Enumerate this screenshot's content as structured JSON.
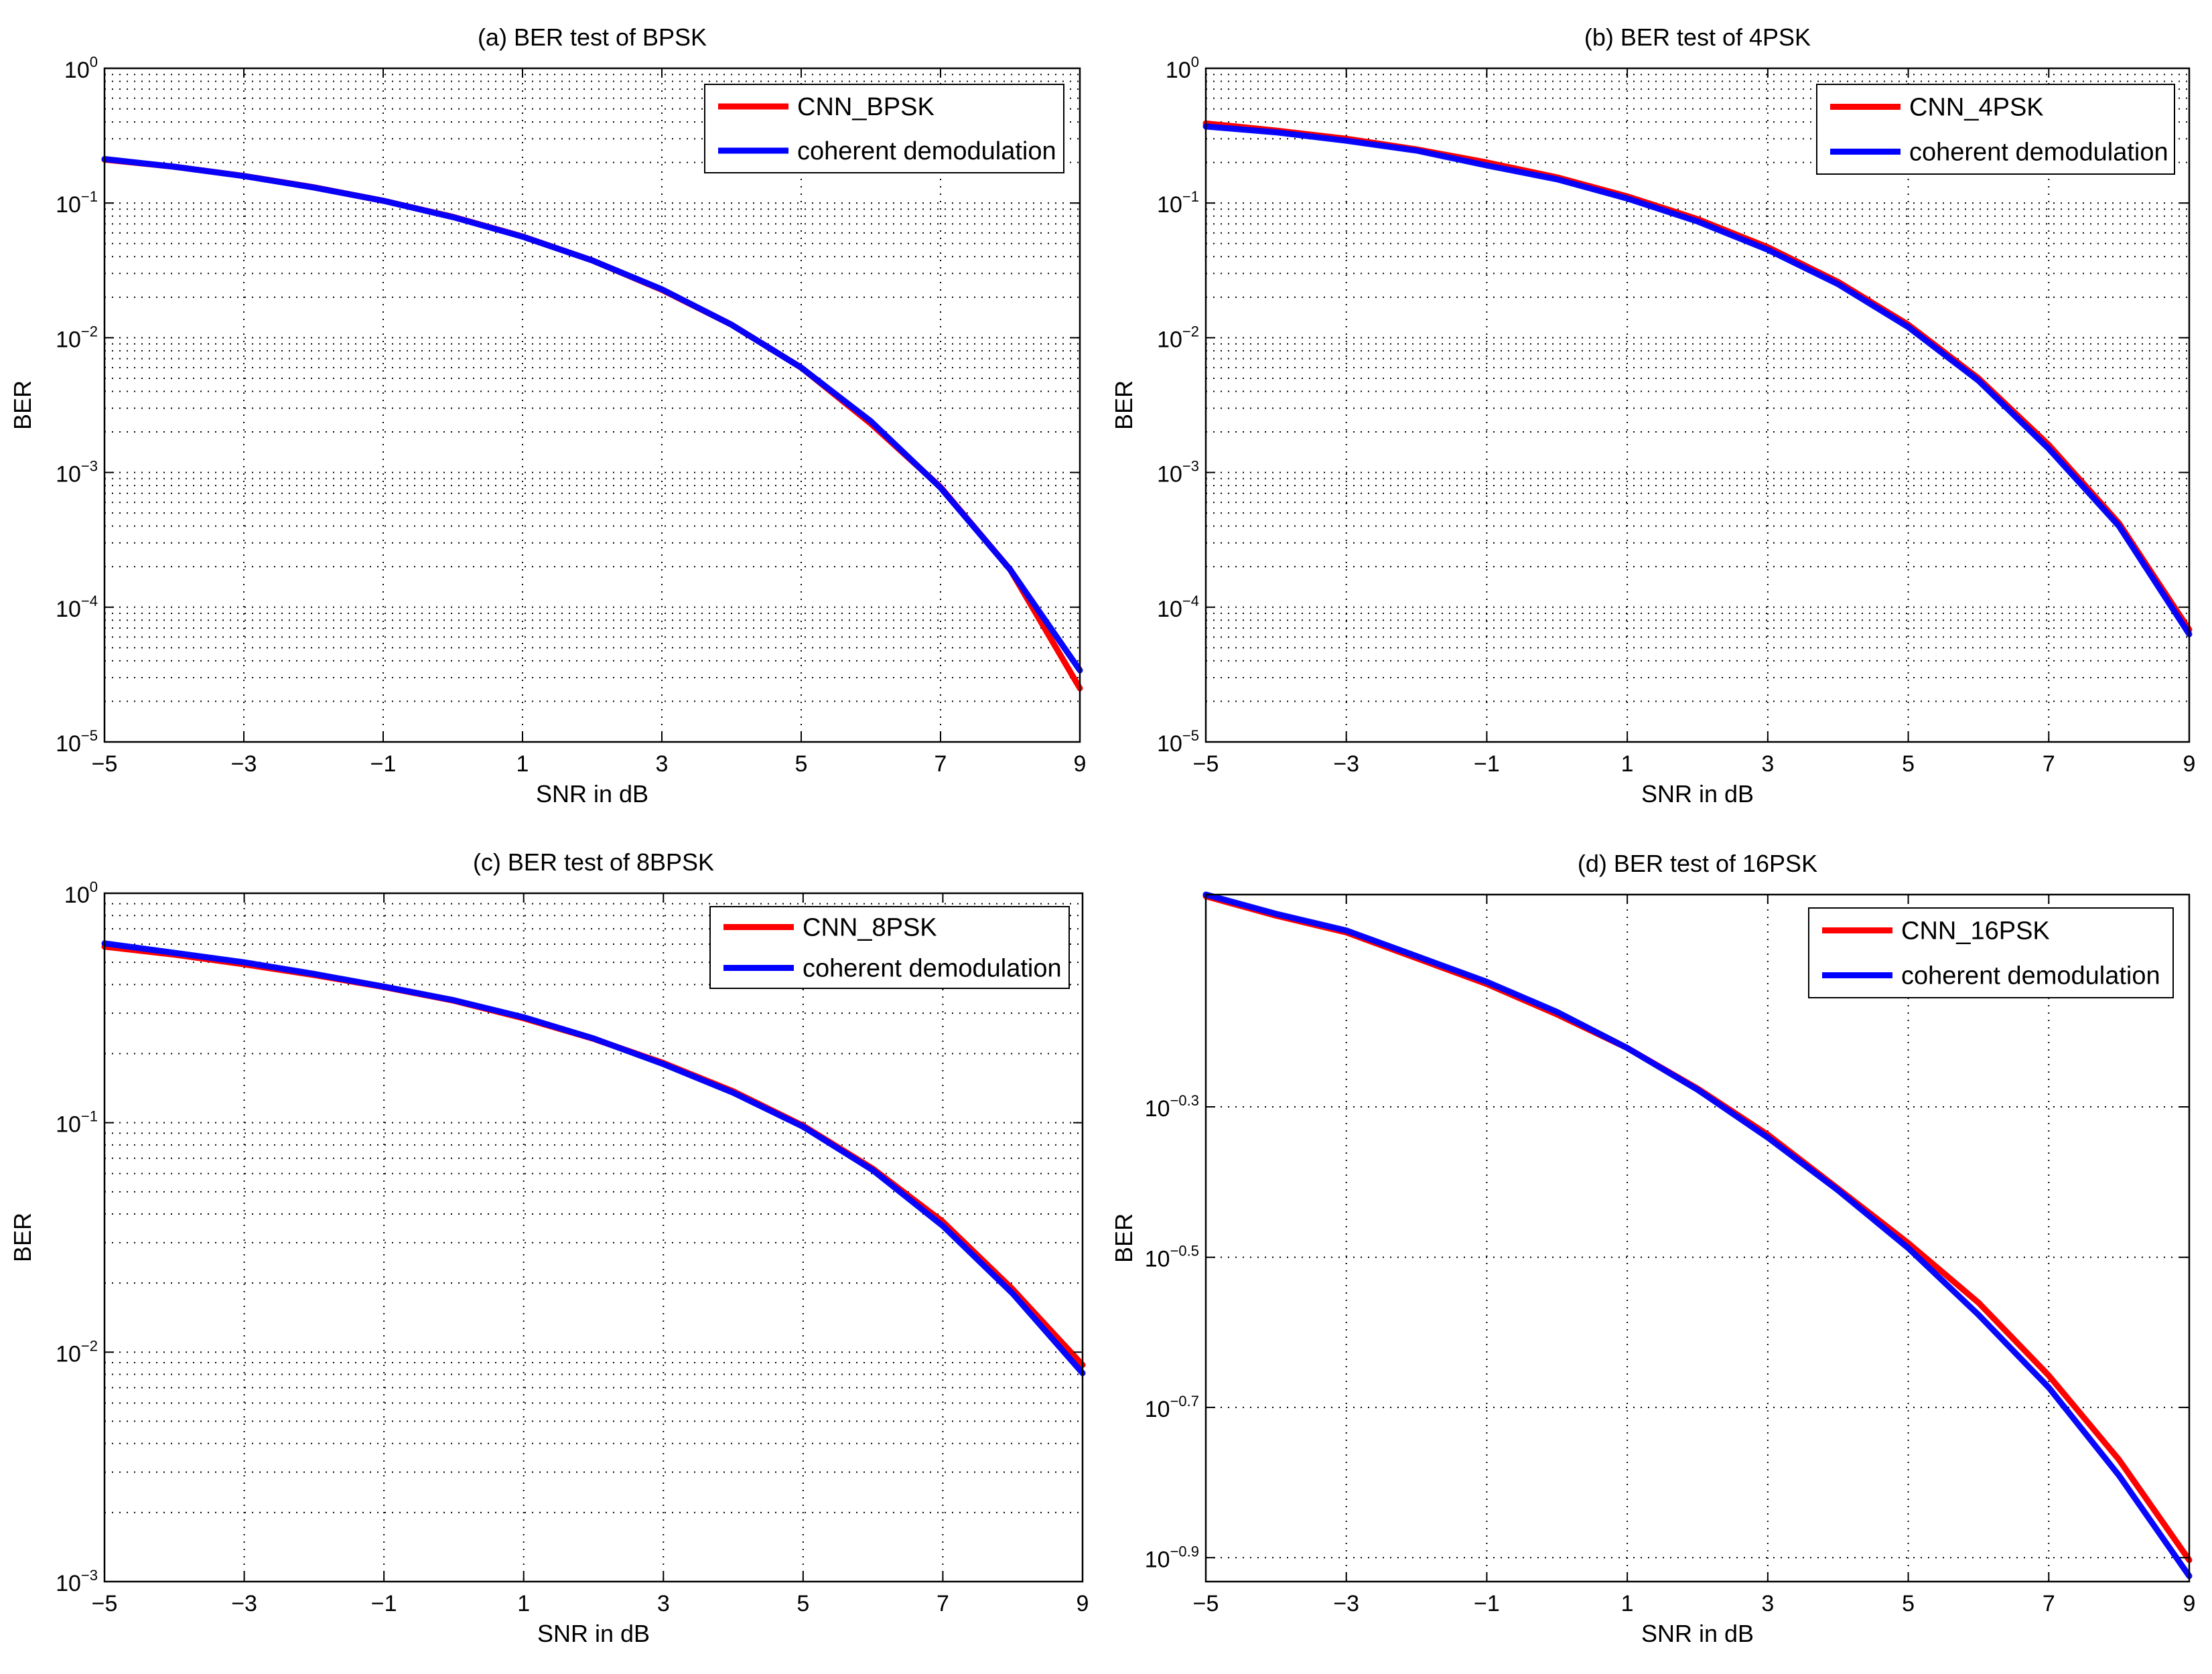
{
  "chart_data": [
    {
      "type": "line",
      "title": "(a)  BER test of BPSK",
      "xlabel": "SNR in dB",
      "ylabel": "BER",
      "yscale": "log",
      "xlim": [
        -5,
        9
      ],
      "ylim": [
        1e-05,
        1
      ],
      "x_ticks": [
        -5,
        -3,
        -1,
        1,
        3,
        5,
        7,
        9
      ],
      "x_tick_labels": [
        "−5",
        "−3",
        "−1",
        "1",
        "3",
        "5",
        "7",
        "9"
      ],
      "y_ticks": [
        {
          "base": "10",
          "exp": "0",
          "value": 1
        },
        {
          "base": "10",
          "exp": "−1",
          "value": 0.1
        },
        {
          "base": "10",
          "exp": "−2",
          "value": 0.01
        },
        {
          "base": "10",
          "exp": "−3",
          "value": 0.001
        },
        {
          "base": "10",
          "exp": "−4",
          "value": 0.0001
        },
        {
          "base": "10",
          "exp": "−5",
          "value": 1e-05
        }
      ],
      "grid": true,
      "legend_position": "top-right",
      "x": [
        -5,
        -4,
        -3,
        -2,
        -1,
        0,
        1,
        2,
        3,
        4,
        5,
        6,
        7,
        8,
        9
      ],
      "series": [
        {
          "name": "CNN_BPSK",
          "color": "#ff0000",
          "values": [
            0.21,
            0.186,
            0.159,
            0.131,
            0.104,
            0.079,
            0.0565,
            0.0375,
            0.0227,
            0.0125,
            0.006,
            0.0023,
            0.00078,
            0.00019,
            2.5e-05
          ]
        },
        {
          "name": "coherent demodulation",
          "color": "#0000ff",
          "values": [
            0.2122,
            0.186,
            0.1586,
            0.1306,
            0.104,
            0.0786,
            0.0563,
            0.0375,
            0.0229,
            0.0125,
            0.006,
            0.0024,
            0.00077,
            0.00019,
            3.4e-05
          ]
        }
      ]
    },
    {
      "type": "line",
      "title": "(b)  BER test of 4PSK",
      "xlabel": "SNR in dB",
      "ylabel": "BER",
      "yscale": "log",
      "xlim": [
        -5,
        9
      ],
      "ylim": [
        1e-05,
        1
      ],
      "x_ticks": [
        -5,
        -3,
        -1,
        1,
        3,
        5,
        7,
        9
      ],
      "x_tick_labels": [
        "−5",
        "−3",
        "−1",
        "1",
        "3",
        "5",
        "7",
        "9"
      ],
      "y_ticks": [
        {
          "base": "10",
          "exp": "0",
          "value": 1
        },
        {
          "base": "10",
          "exp": "−1",
          "value": 0.1
        },
        {
          "base": "10",
          "exp": "−2",
          "value": 0.01
        },
        {
          "base": "10",
          "exp": "−3",
          "value": 0.001
        },
        {
          "base": "10",
          "exp": "−4",
          "value": 0.0001
        },
        {
          "base": "10",
          "exp": "−5",
          "value": 1e-05
        }
      ],
      "grid": true,
      "legend_position": "top-right",
      "x": [
        -5,
        -4,
        -3,
        -2,
        -1,
        0,
        1,
        2,
        3,
        4,
        5,
        6,
        7,
        8,
        9
      ],
      "series": [
        {
          "name": "CNN_4PSK",
          "color": "#ff0000",
          "values": [
            0.39,
            0.345,
            0.3,
            0.25,
            0.2,
            0.155,
            0.112,
            0.076,
            0.047,
            0.026,
            0.0125,
            0.005,
            0.0016,
            0.00042,
            6.8e-05
          ]
        },
        {
          "name": "coherent demodulation",
          "color": "#0000ff",
          "values": [
            0.37,
            0.335,
            0.29,
            0.245,
            0.19,
            0.15,
            0.108,
            0.073,
            0.045,
            0.025,
            0.012,
            0.0048,
            0.0015,
            0.0004,
            6.3e-05
          ]
        }
      ]
    },
    {
      "type": "line",
      "title": "(c)  BER test of 8BPSK",
      "xlabel": "SNR in dB",
      "ylabel": "BER",
      "yscale": "log",
      "xlim": [
        -5,
        9
      ],
      "ylim": [
        0.001,
        1
      ],
      "x_ticks": [
        -5,
        -3,
        -1,
        1,
        3,
        5,
        7,
        9
      ],
      "x_tick_labels": [
        "−5",
        "−3",
        "−1",
        "1",
        "3",
        "5",
        "7",
        "9"
      ],
      "y_ticks": [
        {
          "base": "10",
          "exp": "0",
          "value": 1
        },
        {
          "base": "10",
          "exp": "−1",
          "value": 0.1
        },
        {
          "base": "10",
          "exp": "−2",
          "value": 0.01
        },
        {
          "base": "10",
          "exp": "−3",
          "value": 0.001
        }
      ],
      "grid": true,
      "legend_position": "top-right",
      "x": [
        -5,
        -4,
        -3,
        -2,
        -1,
        0,
        1,
        2,
        3,
        4,
        5,
        6,
        7,
        8,
        9
      ],
      "series": [
        {
          "name": "CNN_8PSK",
          "color": "#ff0000",
          "values": [
            0.585,
            0.54,
            0.49,
            0.44,
            0.39,
            0.34,
            0.285,
            0.232,
            0.182,
            0.137,
            0.097,
            0.063,
            0.037,
            0.0188,
            0.0088
          ]
        },
        {
          "name": "coherent demodulation",
          "color": "#0000ff",
          "values": [
            0.605,
            0.55,
            0.5,
            0.445,
            0.392,
            0.342,
            0.288,
            0.233,
            0.18,
            0.135,
            0.096,
            0.062,
            0.0355,
            0.018,
            0.0081
          ]
        }
      ]
    },
    {
      "type": "line",
      "title": "(d)  BER test of 16PSK",
      "xlabel": "SNR in dB",
      "ylabel": "BER",
      "yscale": "log",
      "xlim": [
        -5,
        9
      ],
      "ylim": [
        0.117,
        0.96
      ],
      "x_ticks": [
        -5,
        -3,
        -1,
        1,
        3,
        5,
        7,
        9
      ],
      "x_tick_labels": [
        "−5",
        "−3",
        "−1",
        "1",
        "3",
        "5",
        "7",
        "9"
      ],
      "y_ticks": [
        {
          "base": "10",
          "exp": "−0.3",
          "value": 0.501
        },
        {
          "base": "10",
          "exp": "−0.5",
          "value": 0.316
        },
        {
          "base": "10",
          "exp": "−0.7",
          "value": 0.1995
        },
        {
          "base": "10",
          "exp": "−0.9",
          "value": 0.1259
        }
      ],
      "grid": true,
      "legend_position": "top-right",
      "x": [
        -5,
        -4,
        -3,
        -2,
        -1,
        0,
        1,
        2,
        3,
        4,
        5,
        6,
        7,
        8,
        9
      ],
      "series": [
        {
          "name": "CNN_16PSK",
          "color": "#ff0000",
          "values": [
            0.955,
            0.9,
            0.855,
            0.79,
            0.73,
            0.665,
            0.6,
            0.53,
            0.46,
            0.39,
            0.33,
            0.275,
            0.22,
            0.17,
            0.125
          ]
        },
        {
          "name": "coherent demodulation",
          "color": "#0000ff",
          "values": [
            0.96,
            0.905,
            0.86,
            0.795,
            0.735,
            0.67,
            0.6,
            0.528,
            0.456,
            0.388,
            0.325,
            0.265,
            0.212,
            0.162,
            0.119
          ]
        }
      ]
    }
  ]
}
